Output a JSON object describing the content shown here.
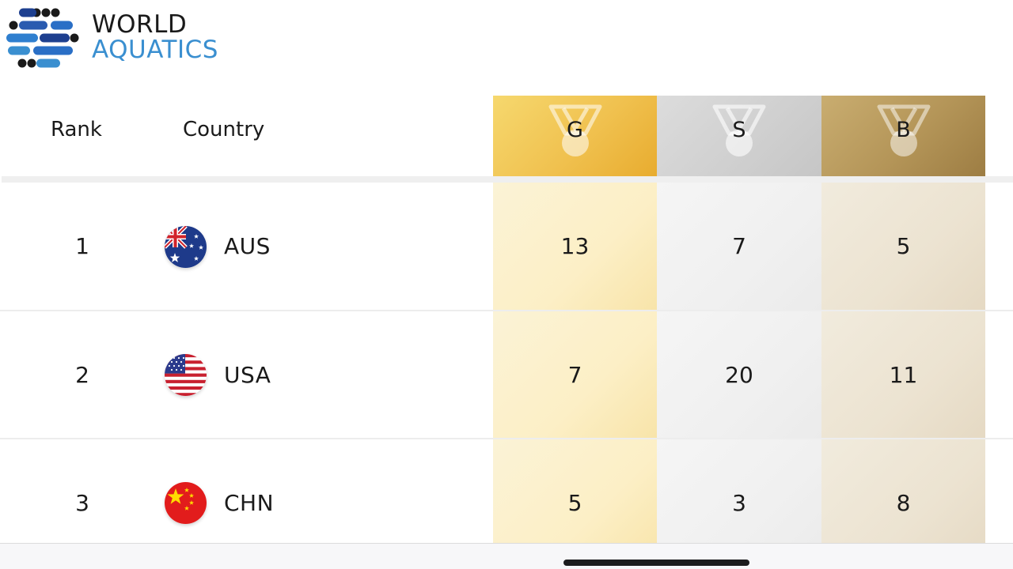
{
  "header": {
    "logo_line1": "WORLD",
    "logo_line2": "AQUATICS",
    "brand_colors": {
      "dark": "#1a1a1a",
      "blue": "#3a8fd0",
      "navy": "#1d3f8f"
    }
  },
  "table": {
    "columns": {
      "rank": "Rank",
      "country": "Country",
      "gold": "G",
      "silver": "S",
      "bronze": "B"
    },
    "rows": [
      {
        "rank": "1",
        "country": "AUS",
        "flag": "australia-flag-icon",
        "gold": "13",
        "silver": "7",
        "bronze": "5"
      },
      {
        "rank": "2",
        "country": "USA",
        "flag": "usa-flag-icon",
        "gold": "7",
        "silver": "20",
        "bronze": "11"
      },
      {
        "rank": "3",
        "country": "CHN",
        "flag": "china-flag-icon",
        "gold": "5",
        "silver": "3",
        "bronze": "8"
      }
    ],
    "medal_colors": {
      "gold": "#f0c14f",
      "silver": "#cfcfcf",
      "bronze": "#b49558"
    }
  }
}
